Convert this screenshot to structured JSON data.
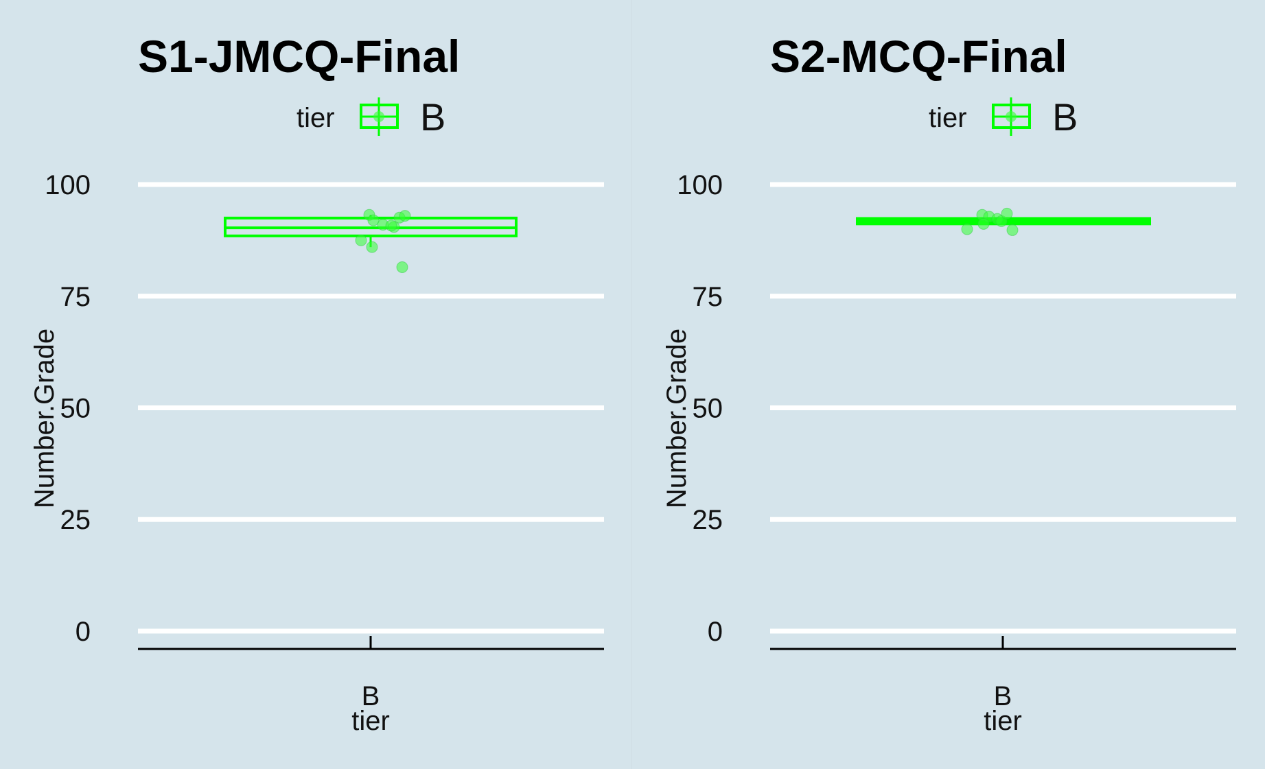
{
  "colors": {
    "background": "#d5e4eb",
    "grid": "#ffffff",
    "box": "#00ff00",
    "points": "#33ff33"
  },
  "chart_data": [
    {
      "type": "box",
      "title": "S1-JMCQ-Final",
      "legend": {
        "title": "tier",
        "entries": [
          "B"
        ],
        "placement": "top"
      },
      "xlabel": "tier",
      "ylabel": "Number.Grade",
      "categories": [
        "B"
      ],
      "ylim": [
        -4,
        104
      ],
      "yticks": [
        0,
        25,
        50,
        75,
        100
      ],
      "grid": true,
      "box": {
        "category": "B",
        "q1": 88.5,
        "median": 90.3,
        "q3": 92.5,
        "whisker_low": 86,
        "whisker_high": 93.2
      },
      "points": [
        {
          "x": "B",
          "y": 93.2
        },
        {
          "x": "B",
          "y": 92.0
        },
        {
          "x": "B",
          "y": 91.0
        },
        {
          "x": "B",
          "y": 90.5
        },
        {
          "x": "B",
          "y": 90.8
        },
        {
          "x": "B",
          "y": 92.6
        },
        {
          "x": "B",
          "y": 93.0
        },
        {
          "x": "B",
          "y": 87.5
        },
        {
          "x": "B",
          "y": 86.0
        },
        {
          "x": "B",
          "y": 81.5
        }
      ]
    },
    {
      "type": "box",
      "title": "S2-MCQ-Final",
      "legend": {
        "title": "tier",
        "entries": [
          "B"
        ],
        "placement": "top"
      },
      "xlabel": "tier",
      "ylabel": "Number.Grade",
      "categories": [
        "B"
      ],
      "ylim": [
        -4,
        104
      ],
      "yticks": [
        0,
        25,
        50,
        75,
        100
      ],
      "grid": true,
      "box": {
        "category": "B",
        "q1": 91.2,
        "median": 91.8,
        "q3": 92.4,
        "whisker_low": 91.0,
        "whisker_high": 92.5
      },
      "points": [
        {
          "x": "B",
          "y": 93.2
        },
        {
          "x": "B",
          "y": 92.8
        },
        {
          "x": "B",
          "y": 92.3
        },
        {
          "x": "B",
          "y": 91.8
        },
        {
          "x": "B",
          "y": 91.2
        },
        {
          "x": "B",
          "y": 90.0
        },
        {
          "x": "B",
          "y": 93.5
        },
        {
          "x": "B",
          "y": 89.8
        }
      ]
    }
  ]
}
